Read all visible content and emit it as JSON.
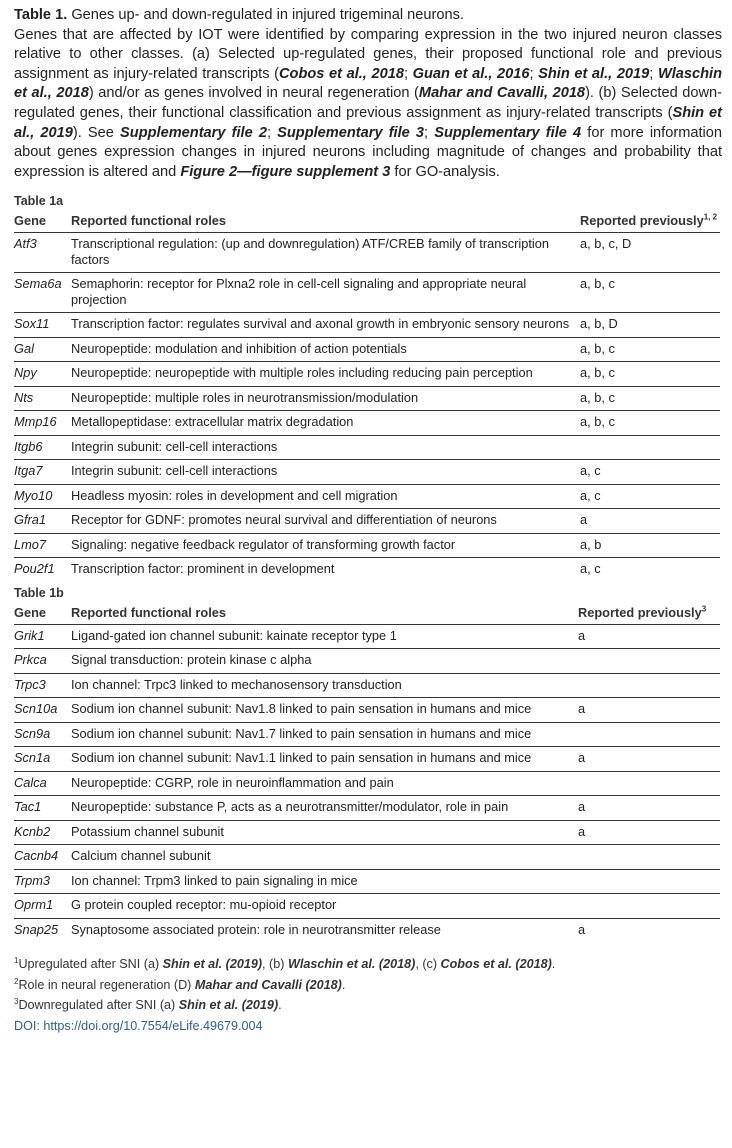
{
  "caption": {
    "title": "Table 1.",
    "title_rest": " Genes up- and down-regulated in injured trigeminal neurons.",
    "p_1": "Genes that are affected by IOT were identified by comparing expression in the two injured neuron classes relative to other classes. (a) Selected up-regulated genes, their proposed functional role and previous assignment as injury-related transcripts (",
    "r_cobos": "Cobos et al., 2018",
    "s_1": "; ",
    "r_guan": "Guan et al., 2016",
    "s_2": "; ",
    "r_shin": "Shin et al., 2019",
    "s_3": "; ",
    "r_wlaschin": "Wlaschin et al., 2018",
    "p_2": ") and/or as genes involved in neural regeneration (",
    "r_mahar": "Mahar and Cavalli, 2018",
    "p_3": "). (b) Selected down-regulated genes, their functional classification and previous assignment as injury-related transcripts (",
    "r_shin2": "Shin et al., 2019",
    "p_4": "). See ",
    "r_supp2": "Supplementary file 2",
    "s_4": "; ",
    "r_supp3": "Supplementary file 3",
    "s_5": "; ",
    "r_supp4": "Supplementary file 4",
    "p_5": " for more information about genes expression changes in injured neurons including magnitude of changes and probability that expression is altered and ",
    "r_fig": "Figure 2—figure supplement 3",
    "p_6": " for GO-analysis."
  },
  "table_1a": {
    "title": "Table 1a",
    "headers": {
      "gene": "Gene",
      "role": "Reported functional roles",
      "prev": "Reported previously",
      "prev_sup": "1, 2"
    },
    "rows": [
      {
        "gene": "Atf3",
        "role": "Transcriptional regulation: (up and downregulation) ATF/CREB family of transcription factors",
        "prev": "a, b, c, D"
      },
      {
        "gene": "Sema6a",
        "role": "Semaphorin: receptor for Plxna2 role in cell-cell signaling and appropriate neural projection",
        "prev": "a, b, c"
      },
      {
        "gene": "Sox11",
        "role": "Transcription factor: regulates survival and axonal growth in embryonic sensory neurons",
        "prev": "a, b, D"
      },
      {
        "gene": "Gal",
        "role": "Neuropeptide: modulation and inhibition of action potentials",
        "prev": "a, b, c"
      },
      {
        "gene": "Npy",
        "role": "Neuropeptide: neuropeptide with multiple roles including reducing pain perception",
        "prev": "a, b, c"
      },
      {
        "gene": "Nts",
        "role": "Neuropeptide: multiple roles in neurotransmission/modulation",
        "prev": "a, b, c"
      },
      {
        "gene": "Mmp16",
        "role": "Metallopeptidase: extracellular matrix degradation",
        "prev": "a, b, c"
      },
      {
        "gene": "Itgb6",
        "role": "Integrin subunit: cell-cell interactions",
        "prev": ""
      },
      {
        "gene": "Itga7",
        "role": "Integrin subunit: cell-cell interactions",
        "prev": "a, c"
      },
      {
        "gene": "Myo10",
        "role": "Headless myosin: roles in development and cell migration",
        "prev": "a, c"
      },
      {
        "gene": "Gfra1",
        "role": "Receptor for GDNF: promotes neural survival and differentiation of neurons",
        "prev": "a"
      },
      {
        "gene": "Lmo7",
        "role": "Signaling: negative feedback regulator of transforming growth factor",
        "prev": "a, b"
      },
      {
        "gene": "Pou2f1",
        "role": "Transcription factor: prominent in development",
        "prev": "a, c"
      }
    ]
  },
  "table_1b": {
    "title": "Table 1b",
    "headers": {
      "gene": "Gene",
      "role": "Reported functional roles",
      "prev": "Reported previously",
      "prev_sup": "3"
    },
    "rows": [
      {
        "gene": "Grik1",
        "role": "Ligand-gated ion channel subunit: kainate receptor type 1",
        "prev": "a"
      },
      {
        "gene": "Prkca",
        "role": "Signal transduction: protein kinase c alpha",
        "prev": ""
      },
      {
        "gene": "Trpc3",
        "role": "Ion channel: Trpc3 linked to mechanosensory transduction",
        "prev": ""
      },
      {
        "gene": "Scn10a",
        "role": "Sodium ion channel subunit: Nav1.8 linked to pain sensation in humans and mice",
        "prev": "a"
      },
      {
        "gene": "Scn9a",
        "role": "Sodium ion channel subunit: Nav1.7 linked to pain sensation in humans and mice",
        "prev": ""
      },
      {
        "gene": "Scn1a",
        "role": "Sodium ion channel subunit: Nav1.1 linked to pain sensation in humans and mice",
        "prev": "a"
      },
      {
        "gene": "Calca",
        "role": "Neuropeptide: CGRP, role in neuroinflammation and pain",
        "prev": ""
      },
      {
        "gene": "Tac1",
        "role": "Neuropeptide: substance P, acts as a neurotransmitter/modulator, role in pain",
        "prev": "a"
      },
      {
        "gene": "Kcnb2",
        "role": "Potassium channel subunit",
        "prev": "a"
      },
      {
        "gene": "Cacnb4",
        "role": "Calcium channel subunit",
        "prev": ""
      },
      {
        "gene": "Trpm3",
        "role": "Ion channel: Trpm3 linked to pain signaling in mice",
        "prev": ""
      },
      {
        "gene": "Oprm1",
        "role": "G protein coupled receptor: mu-opioid receptor",
        "prev": ""
      },
      {
        "gene": "Snap25",
        "role": "Synaptosome associated protein: role in neurotransmitter release",
        "prev": "a"
      }
    ]
  },
  "footnotes": {
    "f1": {
      "sup": "1",
      "t1": "Upregulated after SNI (a) ",
      "r1": "Shin et al. (2019)",
      "t2": ", (b) ",
      "r2": "Wlaschin et al. (2018)",
      "t3": ", (c) ",
      "r3": "Cobos et al. (2018)",
      "t4": "."
    },
    "f2": {
      "sup": "2",
      "t1": "Role in neural regeneration (D) ",
      "r1": "Mahar and Cavalli (2018)",
      "t2": "."
    },
    "f3": {
      "sup": "3",
      "t1": "Downregulated after SNI (a) ",
      "r1": "Shin et al. (2019)",
      "t2": "."
    },
    "doi": "DOI: https://doi.org/10.7554/eLife.49679.004"
  }
}
